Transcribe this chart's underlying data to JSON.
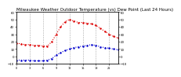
{
  "title": "Milwaukee Weather Outdoor Temperature (vs) Dew Point (Last 24 Hours)",
  "title_fontsize": 4.0,
  "background_color": "#ffffff",
  "temp_color": "#dd0000",
  "dew_color": "#0000cc",
  "grid_color": "#aaaaaa",
  "ylim": [
    -10,
    60
  ],
  "yticks": [
    -10,
    0,
    10,
    20,
    30,
    40,
    50,
    60
  ],
  "hours": [
    0,
    1,
    2,
    3,
    4,
    5,
    6,
    7,
    8,
    9,
    10,
    11,
    12,
    13,
    14,
    15,
    16,
    17,
    18,
    19,
    20,
    21,
    22,
    23
  ],
  "temp": [
    18,
    17,
    16,
    16,
    15,
    15,
    14,
    14,
    20,
    30,
    40,
    47,
    50,
    48,
    46,
    46,
    45,
    44,
    42,
    38,
    34,
    30,
    27,
    25
  ],
  "dew": [
    -5,
    -5,
    -5,
    -5,
    -6,
    -6,
    -6,
    -5,
    -3,
    2,
    5,
    8,
    10,
    12,
    13,
    14,
    15,
    16,
    15,
    13,
    12,
    11,
    10,
    9
  ],
  "xtick_positions": [
    0,
    3,
    6,
    9,
    12,
    15,
    18,
    21
  ],
  "xtick_labels": [
    "0",
    "3",
    "6",
    "9",
    "12",
    "15",
    "18",
    "21"
  ],
  "line_width": 0.8,
  "marker_size": 1.5
}
